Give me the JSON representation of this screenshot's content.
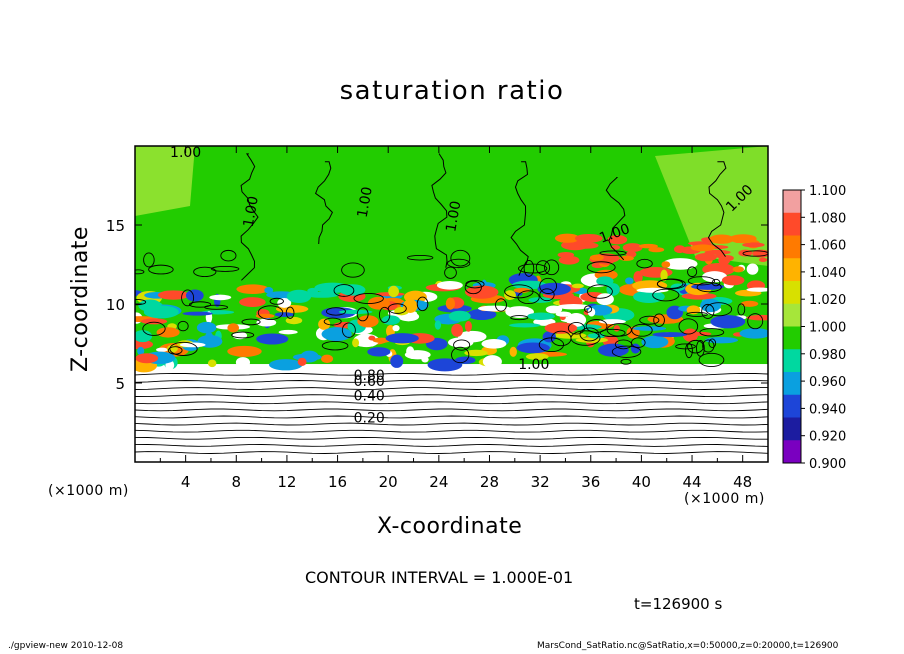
{
  "chart_data": {
    "type": "heatmap",
    "title": "saturation ratio",
    "xlabel": "X-coordinate",
    "ylabel": "Z-coordinate",
    "x_unit": "(×1000 m)",
    "y_unit": "(×1000 m)",
    "xlim": [
      0,
      50
    ],
    "ylim": [
      0,
      20
    ],
    "x_ticks": [
      4,
      8,
      12,
      16,
      20,
      24,
      28,
      32,
      36,
      40,
      44,
      48
    ],
    "y_ticks": [
      5,
      10,
      15
    ],
    "colorbar": {
      "range": [
        0.9,
        1.1
      ],
      "ticks": [
        "1.100",
        "1.080",
        "1.060",
        "1.040",
        "1.020",
        "1.000",
        "0.980",
        "0.960",
        "0.940",
        "0.920",
        "0.900"
      ],
      "colors": [
        "#f2a0a0",
        "#ff4a2a",
        "#ff7a00",
        "#ffb300",
        "#d8e000",
        "#a6e63a",
        "#22cc00",
        "#00d8a0",
        "#0aa0e0",
        "#1d45d8",
        "#1c1ca0",
        "#7a00c0"
      ]
    },
    "contour_labels": [
      "1.00",
      "1.00",
      "1.00",
      "1.00",
      "1.00",
      "1.00",
      "1.00",
      "0.60",
      "0.80",
      "0.40",
      "0.20"
    ],
    "contour_interval": "CONTOUR INTERVAL = 1.000E-01"
  },
  "timestamp": "t=126900 s",
  "footer_left": "./gpview-new   2010-12-08",
  "footer_right": "MarsCond_SatRatio.nc@SatRatio,x=0:50000,z=0:20000,t=126900"
}
